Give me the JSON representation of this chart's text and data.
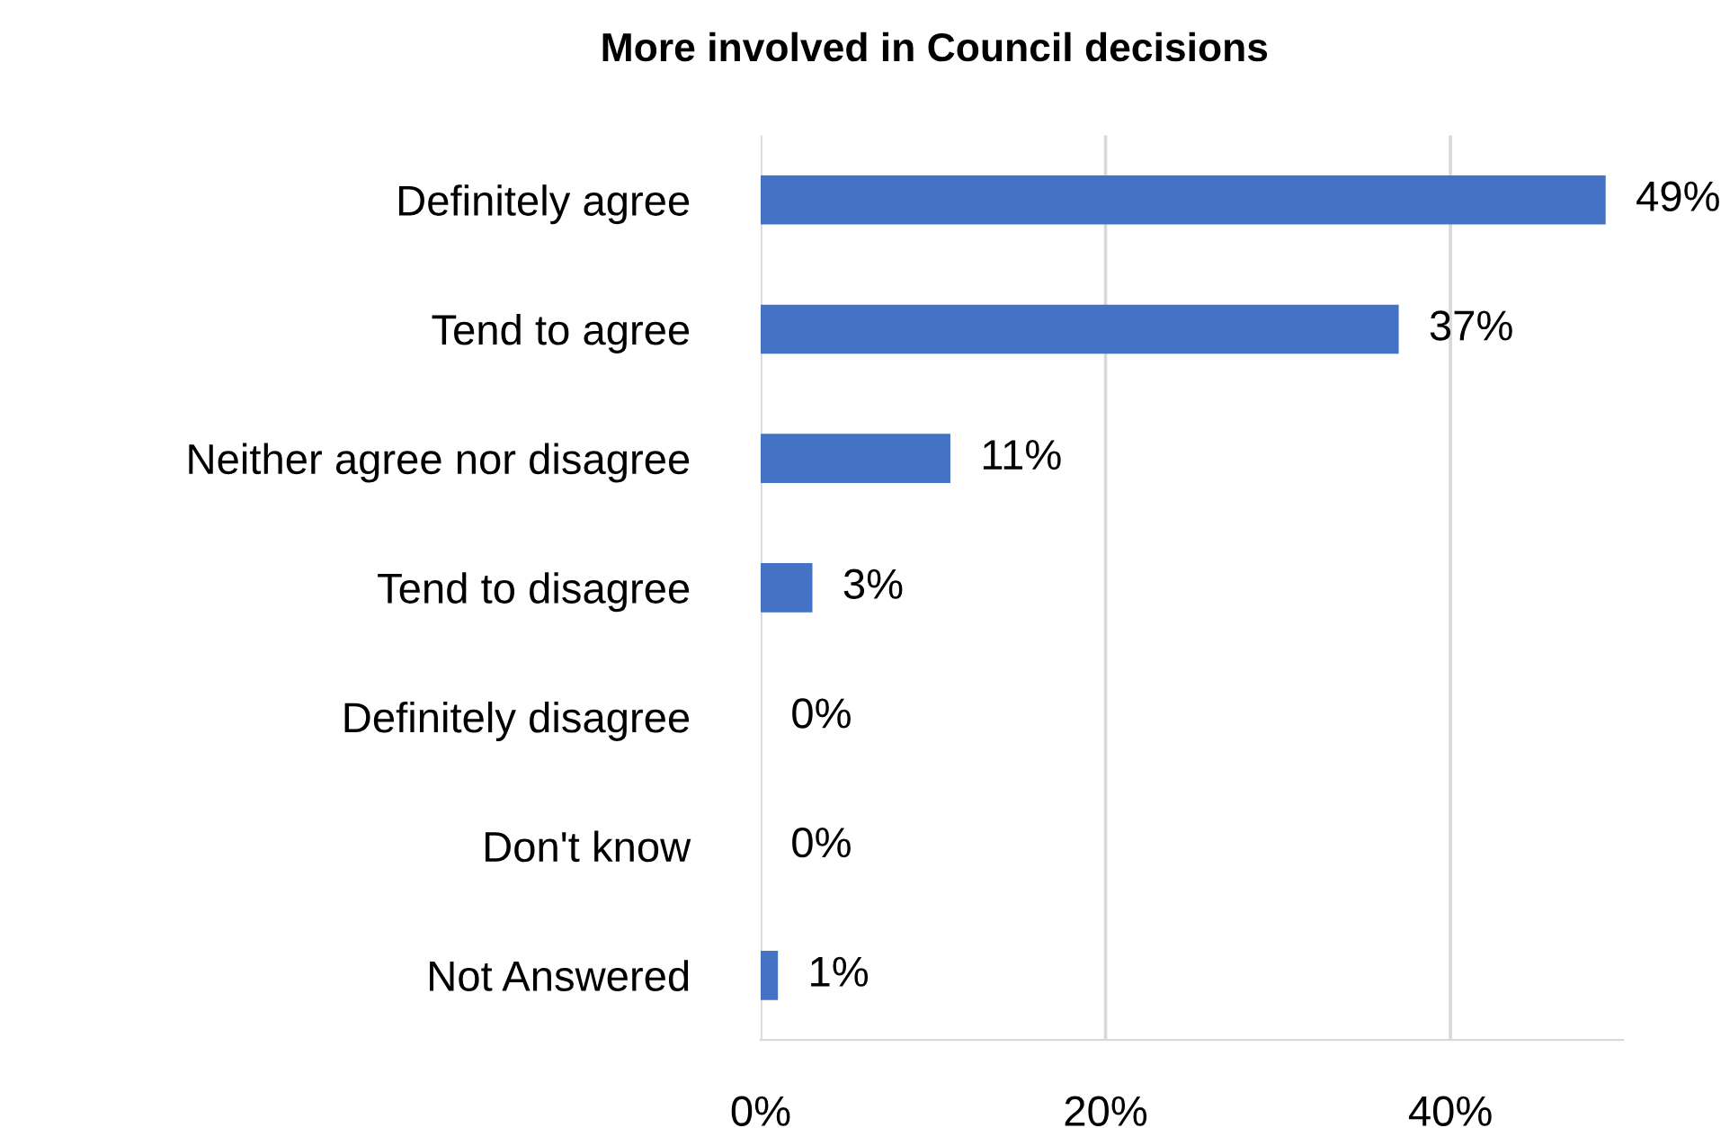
{
  "chart_data": {
    "type": "bar",
    "orientation": "horizontal",
    "title": "More involved in Council decisions",
    "categories": [
      "Definitely agree",
      "Tend to agree",
      "Neither agree nor disagree",
      "Tend to disagree",
      "Definitely disagree",
      "Don't know",
      "Not Answered"
    ],
    "values": [
      49,
      37,
      11,
      3,
      0,
      0,
      1
    ],
    "value_labels": [
      "49%",
      "37%",
      "11%",
      "3%",
      "0%",
      "0%",
      "1%"
    ],
    "color": "#4472c4",
    "xlim": [
      0,
      50
    ],
    "xticks": [
      {
        "value": 0,
        "label": "0%"
      },
      {
        "value": 20,
        "label": "20%"
      },
      {
        "value": 40,
        "label": "40%"
      }
    ],
    "grid": "x",
    "legend": false
  }
}
